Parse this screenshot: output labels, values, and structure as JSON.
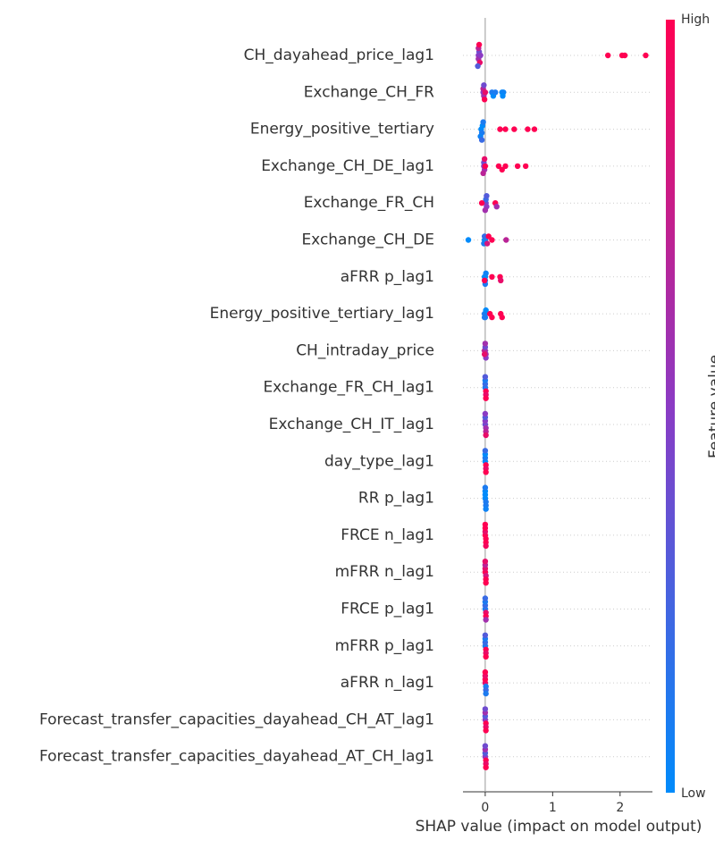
{
  "chart_data": {
    "type": "beeswarm",
    "x_label": "SHAP value (impact on model output)",
    "colorbar_label": "Feature value",
    "colorbar_high": "High",
    "colorbar_low": "Low",
    "colormap": [
      "#008bfb",
      "#8b3bc4",
      "#ff0052"
    ],
    "xlim": [
      -0.33,
      2.48
    ],
    "xticks": [
      0,
      1,
      2
    ],
    "categories": [
      "CH_dayahead_price_lag1",
      "Exchange_CH_FR",
      "Energy_positive_tertiary",
      "Exchange_CH_DE_lag1",
      "Exchange_FR_CH",
      "Exchange_CH_DE",
      "aFRR p_lag1",
      "Energy_positive_tertiary_lag1",
      "CH_intraday_price",
      "Exchange_FR_CH_lag1",
      "Exchange_CH_IT_lag1",
      "day_type_lag1",
      "RR p_lag1",
      "FRCE n_lag1",
      "mFRR n_lag1",
      "FRCE p_lag1",
      "mFRR p_lag1",
      "aFRR n_lag1",
      "Forecast_transfer_capacities_dayahead_CH_AT_lag1",
      "Forecast_transfer_capacities_dayahead_AT_CH_lag1"
    ],
    "shap_values": [
      [
        -0.1,
        -0.1,
        -0.09,
        -0.08,
        -0.1,
        -0.07,
        -0.11,
        -0.09,
        1.82,
        2.03,
        2.07,
        2.38
      ],
      [
        -0.03,
        -0.02,
        -0.03,
        -0.01,
        0.0,
        -0.02,
        0.1,
        0.12,
        0.15,
        0.25,
        0.27,
        0.26
      ],
      [
        -0.06,
        -0.05,
        -0.04,
        -0.07,
        -0.03,
        -0.05,
        0.22,
        0.3,
        0.43,
        0.63,
        0.73
      ],
      [
        -0.02,
        -0.01,
        -0.02,
        -0.03,
        -0.01,
        0.0,
        0.2,
        0.25,
        0.3,
        0.48,
        0.6
      ],
      [
        0.01,
        0.02,
        0.01,
        0.0,
        0.02,
        -0.05,
        0.15,
        0.17
      ],
      [
        -0.25,
        -0.01,
        -0.02,
        0.0,
        -0.01,
        0.03,
        0.05,
        0.1,
        0.31
      ],
      [
        0.0,
        0.0,
        -0.01,
        0.01,
        0.0,
        -0.01,
        0.1,
        0.22,
        0.23
      ],
      [
        0.0,
        -0.01,
        0.0,
        0.01,
        -0.01,
        0.07,
        0.1,
        0.23,
        0.25
      ],
      [
        0.0,
        0.01,
        -0.01,
        0.0,
        0.01,
        -0.01,
        0.0
      ],
      [
        0.0,
        0.01,
        0.0,
        0.01,
        0.0,
        0.01,
        0.0
      ],
      [
        0.0,
        0.01,
        0.0,
        0.01,
        0.0,
        0.01,
        0.0
      ],
      [
        0.0,
        0.01,
        0.0,
        0.01,
        0.0,
        0.01,
        0.0
      ],
      [
        0.0,
        0.01,
        0.0,
        0.01,
        0.0,
        0.01,
        0.0
      ],
      [
        0.0,
        0.01,
        0.0,
        0.01,
        0.0,
        0.01,
        0.0
      ],
      [
        0.0,
        0.01,
        0.0,
        0.01,
        0.0,
        0.01,
        0.0
      ],
      [
        0.0,
        0.01,
        0.0,
        0.01,
        0.0,
        0.01,
        0.0
      ],
      [
        0.0,
        0.01,
        0.0,
        0.01,
        0.0,
        0.01,
        0.0
      ],
      [
        0.0,
        0.01,
        0.0,
        0.01,
        0.0,
        0.01,
        0.0
      ],
      [
        0.0,
        0.01,
        0.0,
        0.01,
        0.0,
        0.01,
        0.0
      ],
      [
        0.0,
        0.01,
        0.0,
        0.01,
        0.0,
        0.01,
        0.0
      ]
    ],
    "feature_values": [
      [
        0.5,
        0.6,
        0.4,
        0.9,
        0.7,
        0.5,
        0.3,
        1,
        1,
        1,
        1,
        1
      ],
      [
        0.5,
        0.6,
        0.7,
        1,
        0.9,
        0.4,
        0.1,
        0,
        0.1,
        0,
        0.05,
        0
      ],
      [
        0,
        0.1,
        0,
        0.05,
        0.1,
        0.2,
        1,
        1,
        1,
        1,
        1
      ],
      [
        0.5,
        0.6,
        0.4,
        0.7,
        0.9,
        1,
        1,
        1,
        1,
        1,
        1
      ],
      [
        0.4,
        0.5,
        0.2,
        0.6,
        0.3,
        1,
        1,
        0.6
      ],
      [
        0,
        0,
        0.1,
        0.05,
        0.2,
        0.8,
        1,
        1,
        0.7
      ],
      [
        0,
        0.1,
        0,
        0.05,
        0.1,
        1,
        1,
        1,
        0.9
      ],
      [
        0,
        0.1,
        0.05,
        0,
        0.1,
        1,
        1,
        1,
        1
      ],
      [
        0.5,
        0.6,
        0.7,
        0.4,
        0.5,
        0.9,
        0.6
      ],
      [
        0.1,
        1,
        0.2,
        0.9,
        0.1,
        1,
        0.3
      ],
      [
        0.4,
        0.6,
        0.5,
        0.7,
        0.3,
        0.9,
        0.5
      ],
      [
        0,
        1,
        0.1,
        0.9,
        0,
        1,
        0.2
      ],
      [
        0,
        0.1,
        0,
        0.1,
        0,
        0.05,
        0.1
      ],
      [
        1,
        1,
        0.9,
        1,
        1,
        0.95,
        1
      ],
      [
        1,
        0.8,
        0.9,
        1,
        0.7,
        1,
        0.9
      ],
      [
        0.1,
        0.9,
        0.2,
        1,
        0.1,
        0.6,
        0.2
      ],
      [
        0.1,
        1,
        0.2,
        0.9,
        0.1,
        1,
        0.3
      ],
      [
        0.9,
        0.1,
        1,
        0.2,
        0.9,
        0.1,
        1
      ],
      [
        0.5,
        1,
        0.3,
        0.9,
        0.6,
        1,
        0.4
      ],
      [
        0.5,
        1,
        0.3,
        0.9,
        0.6,
        1,
        0.4
      ]
    ]
  }
}
